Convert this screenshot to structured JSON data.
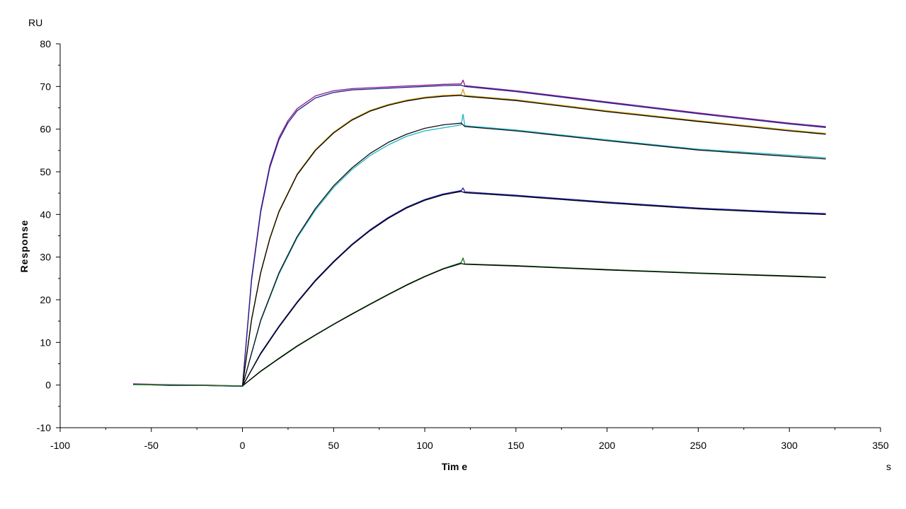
{
  "chart_data": {
    "type": "line",
    "title": "",
    "xlabel": "Tim e",
    "ylabel": "Response",
    "x_unit": "s",
    "y_unit": "RU",
    "xlim": [
      -100,
      350
    ],
    "ylim": [
      -10,
      80
    ],
    "x_major_ticks": [
      -100,
      -50,
      0,
      50,
      100,
      150,
      200,
      250,
      300,
      350
    ],
    "y_major_ticks": [
      -10,
      0,
      10,
      20,
      30,
      40,
      50,
      60,
      70,
      80
    ],
    "x_tick_labels": [
      "-100",
      "-50",
      "0",
      "50",
      "100",
      "150",
      "200",
      "250",
      "300",
      "350"
    ],
    "y_tick_labels": [
      "-10",
      "0",
      "10",
      "20",
      "30",
      "40",
      "50",
      "60",
      "70",
      "80"
    ],
    "grid": false,
    "legend": "none",
    "series": [
      {
        "color": "#8b1a8b",
        "x": [
          -60,
          -40,
          -20,
          0,
          5,
          10,
          15,
          20,
          25,
          30,
          40,
          50,
          60,
          70,
          80,
          90,
          100,
          110,
          120,
          121,
          122,
          150,
          200,
          250,
          300,
          320
        ],
        "values": [
          0.3,
          0.1,
          0.0,
          -0.2,
          25.0,
          41.0,
          51.5,
          58.0,
          62.0,
          64.8,
          67.8,
          69.0,
          69.5,
          69.7,
          69.9,
          70.1,
          70.3,
          70.5,
          70.6,
          71.5,
          70.2,
          69.0,
          66.4,
          63.8,
          61.4,
          60.6
        ]
      },
      {
        "color": "#1f1f8c",
        "x": [
          -60,
          -40,
          -20,
          0,
          5,
          10,
          15,
          20,
          25,
          30,
          40,
          50,
          60,
          70,
          80,
          90,
          100,
          110,
          120,
          122,
          150,
          200,
          250,
          300,
          320
        ],
        "values": [
          0.2,
          0.0,
          -0.1,
          -0.3,
          24.5,
          40.5,
          51.0,
          57.5,
          61.5,
          64.3,
          67.3,
          68.6,
          69.2,
          69.4,
          69.6,
          69.8,
          70.0,
          70.2,
          70.3,
          70.0,
          68.8,
          66.2,
          63.6,
          61.2,
          60.4
        ]
      },
      {
        "color": "#d4a017",
        "x": [
          -60,
          -40,
          -20,
          0,
          5,
          10,
          15,
          20,
          30,
          40,
          50,
          60,
          70,
          80,
          90,
          100,
          110,
          120,
          121,
          122,
          150,
          200,
          250,
          300,
          320
        ],
        "values": [
          0.2,
          0.0,
          -0.1,
          -0.2,
          15.5,
          26.5,
          34.5,
          40.8,
          49.5,
          55.2,
          59.3,
          62.3,
          64.4,
          65.8,
          66.8,
          67.5,
          67.9,
          68.1,
          69.4,
          67.9,
          66.9,
          64.3,
          62.0,
          59.8,
          59.0
        ]
      },
      {
        "color": "#000000",
        "x": [
          0,
          5,
          10,
          15,
          20,
          30,
          40,
          50,
          60,
          70,
          80,
          90,
          100,
          110,
          120,
          122,
          150,
          200,
          250,
          300,
          320
        ],
        "values": [
          -0.2,
          15.3,
          26.3,
          34.3,
          40.6,
          49.3,
          55.0,
          59.1,
          62.1,
          64.2,
          65.6,
          66.6,
          67.3,
          67.7,
          67.9,
          67.7,
          66.7,
          64.1,
          61.8,
          59.6,
          58.8
        ]
      },
      {
        "color": "#1fb5c8",
        "x": [
          0,
          10,
          20,
          30,
          40,
          50,
          60,
          70,
          80,
          90,
          100,
          110,
          120,
          121,
          122,
          150,
          200,
          250,
          300,
          320
        ],
        "values": [
          -0.2,
          15.0,
          26.0,
          34.5,
          41.0,
          46.3,
          50.5,
          53.8,
          56.3,
          58.3,
          59.6,
          60.3,
          61.0,
          63.5,
          60.8,
          59.8,
          57.5,
          55.3,
          53.9,
          53.3
        ]
      },
      {
        "color": "#101010",
        "x": [
          0,
          10,
          20,
          30,
          40,
          50,
          60,
          70,
          80,
          90,
          100,
          110,
          120,
          122,
          150,
          200,
          250,
          300,
          320
        ],
        "values": [
          -0.2,
          15.2,
          26.3,
          34.8,
          41.4,
          46.7,
          50.9,
          54.3,
          56.9,
          58.8,
          60.2,
          61.0,
          61.4,
          60.6,
          59.6,
          57.3,
          55.1,
          53.6,
          53.0
        ]
      },
      {
        "color": "#1a1ab0",
        "x": [
          -60,
          -40,
          -20,
          0,
          10,
          20,
          30,
          40,
          50,
          60,
          70,
          80,
          90,
          100,
          110,
          120,
          121,
          122,
          150,
          200,
          250,
          300,
          320
        ],
        "values": [
          0.2,
          -0.1,
          -0.1,
          -0.3,
          7.5,
          13.8,
          19.5,
          24.6,
          29.0,
          33.0,
          36.4,
          39.3,
          41.7,
          43.5,
          44.8,
          45.6,
          46.2,
          45.3,
          44.5,
          42.9,
          41.5,
          40.5,
          40.2
        ]
      },
      {
        "color": "#000000",
        "x": [
          0,
          10,
          20,
          30,
          40,
          50,
          60,
          70,
          80,
          90,
          100,
          110,
          120,
          122,
          150,
          200,
          250,
          300,
          320
        ],
        "values": [
          -0.2,
          7.3,
          13.6,
          19.3,
          24.4,
          28.8,
          32.8,
          36.2,
          39.1,
          41.5,
          43.3,
          44.6,
          45.4,
          45.1,
          44.3,
          42.7,
          41.3,
          40.3,
          40.0
        ]
      },
      {
        "color": "#1a7a1a",
        "x": [
          -60,
          -40,
          -20,
          0,
          10,
          20,
          30,
          40,
          50,
          60,
          70,
          80,
          90,
          100,
          110,
          120,
          121,
          122,
          150,
          200,
          250,
          300,
          320
        ],
        "values": [
          0.1,
          0.0,
          -0.1,
          -0.2,
          3.3,
          6.3,
          9.2,
          11.8,
          14.3,
          16.7,
          19.0,
          21.3,
          23.5,
          25.5,
          27.3,
          28.7,
          29.8,
          28.4,
          28.0,
          27.1,
          26.3,
          25.6,
          25.3
        ]
      },
      {
        "color": "#000000",
        "x": [
          0,
          10,
          20,
          30,
          40,
          50,
          60,
          70,
          80,
          90,
          100,
          110,
          120,
          122,
          150,
          200,
          250,
          300,
          320
        ],
        "values": [
          -0.2,
          3.2,
          6.2,
          9.1,
          11.7,
          14.2,
          16.6,
          18.9,
          21.2,
          23.4,
          25.4,
          27.2,
          28.5,
          28.3,
          27.9,
          27.0,
          26.2,
          25.5,
          25.2
        ]
      }
    ]
  }
}
